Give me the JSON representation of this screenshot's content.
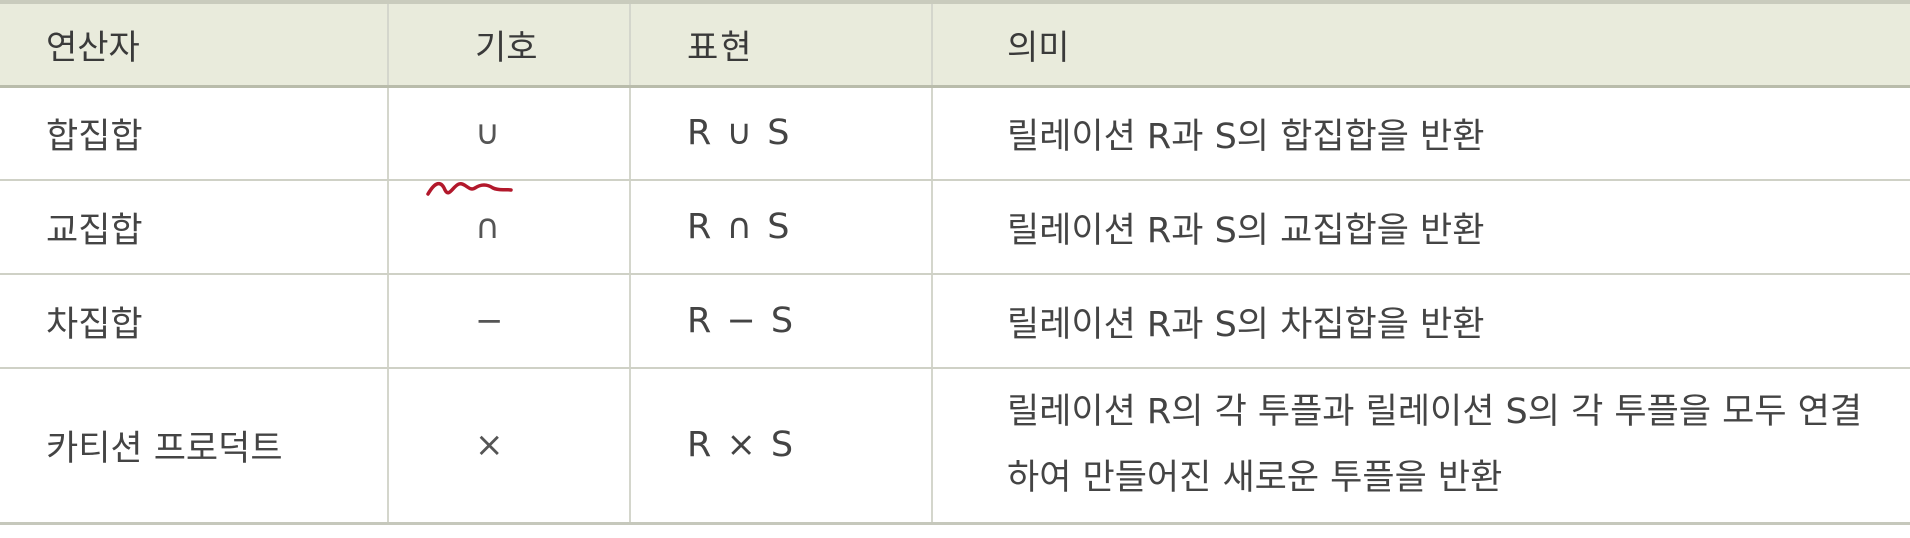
{
  "table": {
    "headers": [
      "연산자",
      "기호",
      "표현",
      "의미"
    ],
    "rows": [
      {
        "operator": "합집합",
        "symbol": "∪",
        "expression": "R ∪ S",
        "meaning_lines": [
          "릴레이션 R과 S의 합집합을 반환"
        ]
      },
      {
        "operator": "교집합",
        "symbol": "∩",
        "expression": "R ∩ S",
        "meaning_lines": [
          "릴레이션 R과 S의 교집합을 반환"
        ]
      },
      {
        "operator": "차집합",
        "symbol": "−",
        "expression": "R − S",
        "meaning_lines": [
          "릴레이션 R과 S의 차집합을 반환"
        ]
      },
      {
        "operator": "카티션 프로덕트",
        "symbol": "×",
        "expression": "R × S",
        "meaning_lines": [
          "릴레이션 R의 각 투플과 릴레이션 S의 각 투플을 모두 연결",
          "하여 만들어진 새로운 투플을 반환"
        ]
      }
    ]
  },
  "colors": {
    "header_bg": "#e9ebdc",
    "text": "#444444",
    "annotation": "#b2182b"
  }
}
